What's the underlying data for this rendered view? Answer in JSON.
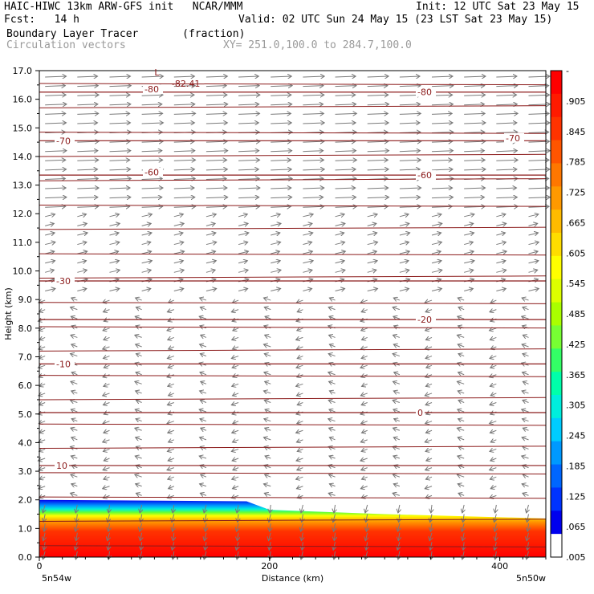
{
  "header": {
    "title": "HAIC-HIWC 13km ARW-GFS init   NCAR/MMM",
    "init": "Init: 12 UTC Sat 23 May 15",
    "fcst": "Fcst:   14 h",
    "valid": "Valid: 02 UTC Sun 24 May 15 (23 LST Sat 23 May 15)",
    "field1": "Boundary Layer Tracer       (fraction)",
    "field2": "Circulation vectors",
    "xy": "XY= 251.0,100.0 to 284.7,100.0"
  },
  "chart_data": {
    "type": "heatmap",
    "xlabel": "Distance (km)",
    "ylabel": "Height (km)",
    "xlim": [
      0,
      440
    ],
    "ylim": [
      0,
      17
    ],
    "x_ticks": [
      0,
      200,
      400
    ],
    "y_ticks": [
      "0.0",
      "1.0",
      "2.0",
      "3.0",
      "4.0",
      "5.0",
      "6.0",
      "7.0",
      "8.0",
      "9.0",
      "10.0",
      "11.0",
      "12.0",
      "13.0",
      "14.0",
      "15.0",
      "16.0",
      "17.0"
    ],
    "left_label": "5n54w",
    "right_label": "5n50w",
    "colorbar": {
      "labels": [
        "-",
        ".905",
        ".845",
        ".785",
        ".725",
        ".665",
        ".605",
        ".545",
        ".485",
        ".425",
        ".365",
        ".305",
        ".245",
        ".185",
        ".125",
        ".065",
        ".005"
      ],
      "colors": [
        "#ff0000",
        "#ff1a00",
        "#ff3300",
        "#ff5500",
        "#ff7700",
        "#ff9900",
        "#ffbb00",
        "#ffdd00",
        "#ffff00",
        "#ddff00",
        "#aaff00",
        "#77ff33",
        "#33ff66",
        "#00ffaa",
        "#00eedd",
        "#00ccff",
        "#0099ff",
        "#0066ff",
        "#0033ff",
        "#0000ee",
        "#ffffff"
      ]
    },
    "tracer_top": [
      [
        0,
        2.0
      ],
      [
        180,
        1.95
      ],
      [
        200,
        1.65
      ],
      [
        300,
        1.5
      ],
      [
        440,
        1.35
      ]
    ],
    "temperature_contours": [
      {
        "label": "10",
        "y": 3.2
      },
      {
        "label": "0",
        "y": 5.05
      },
      {
        "label": "-10",
        "y": 6.75
      },
      {
        "label": "-20",
        "y": 8.3
      },
      {
        "label": "-30",
        "y": 9.65
      },
      {
        "label": "-60",
        "y": 13.35
      },
      {
        "label": "-70",
        "y": 14.55
      },
      {
        "label": "-80",
        "y": 16.25
      }
    ],
    "annotations": [
      {
        "text": "L",
        "x": 100,
        "y": 16.95
      },
      {
        "text": "-82.41",
        "x": 115,
        "y": 16.55
      }
    ]
  }
}
